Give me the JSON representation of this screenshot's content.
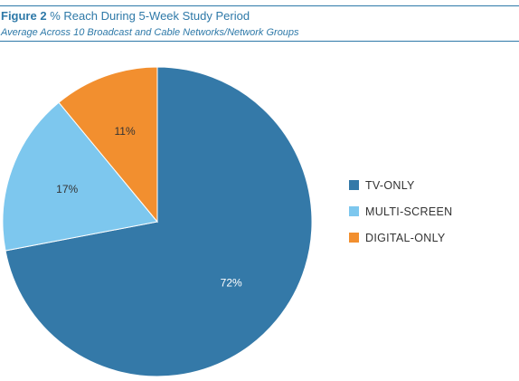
{
  "header": {
    "figure_label": "Figure 2",
    "title": "% Reach During 5-Week Study Period",
    "subtitle": "Average Across 10 Broadcast and Cable Networks/Network Groups"
  },
  "colors": {
    "accent": "#2e79a8"
  },
  "chart_data": {
    "type": "pie",
    "title": "% Reach During 5-Week Study Period",
    "subtitle": "Average Across 10 Broadcast and Cable Networks/Network Groups",
    "unit": "%",
    "legend_position": "right",
    "slices": [
      {
        "label": "TV-ONLY",
        "value": 72,
        "display": "72%",
        "color": "#3479a8"
      },
      {
        "label": "MULTI-SCREEN",
        "value": 17,
        "display": "17%",
        "color": "#7dc7ee"
      },
      {
        "label": "DIGITAL-ONLY",
        "value": 11,
        "display": "11%",
        "color": "#f28f2f"
      }
    ]
  }
}
